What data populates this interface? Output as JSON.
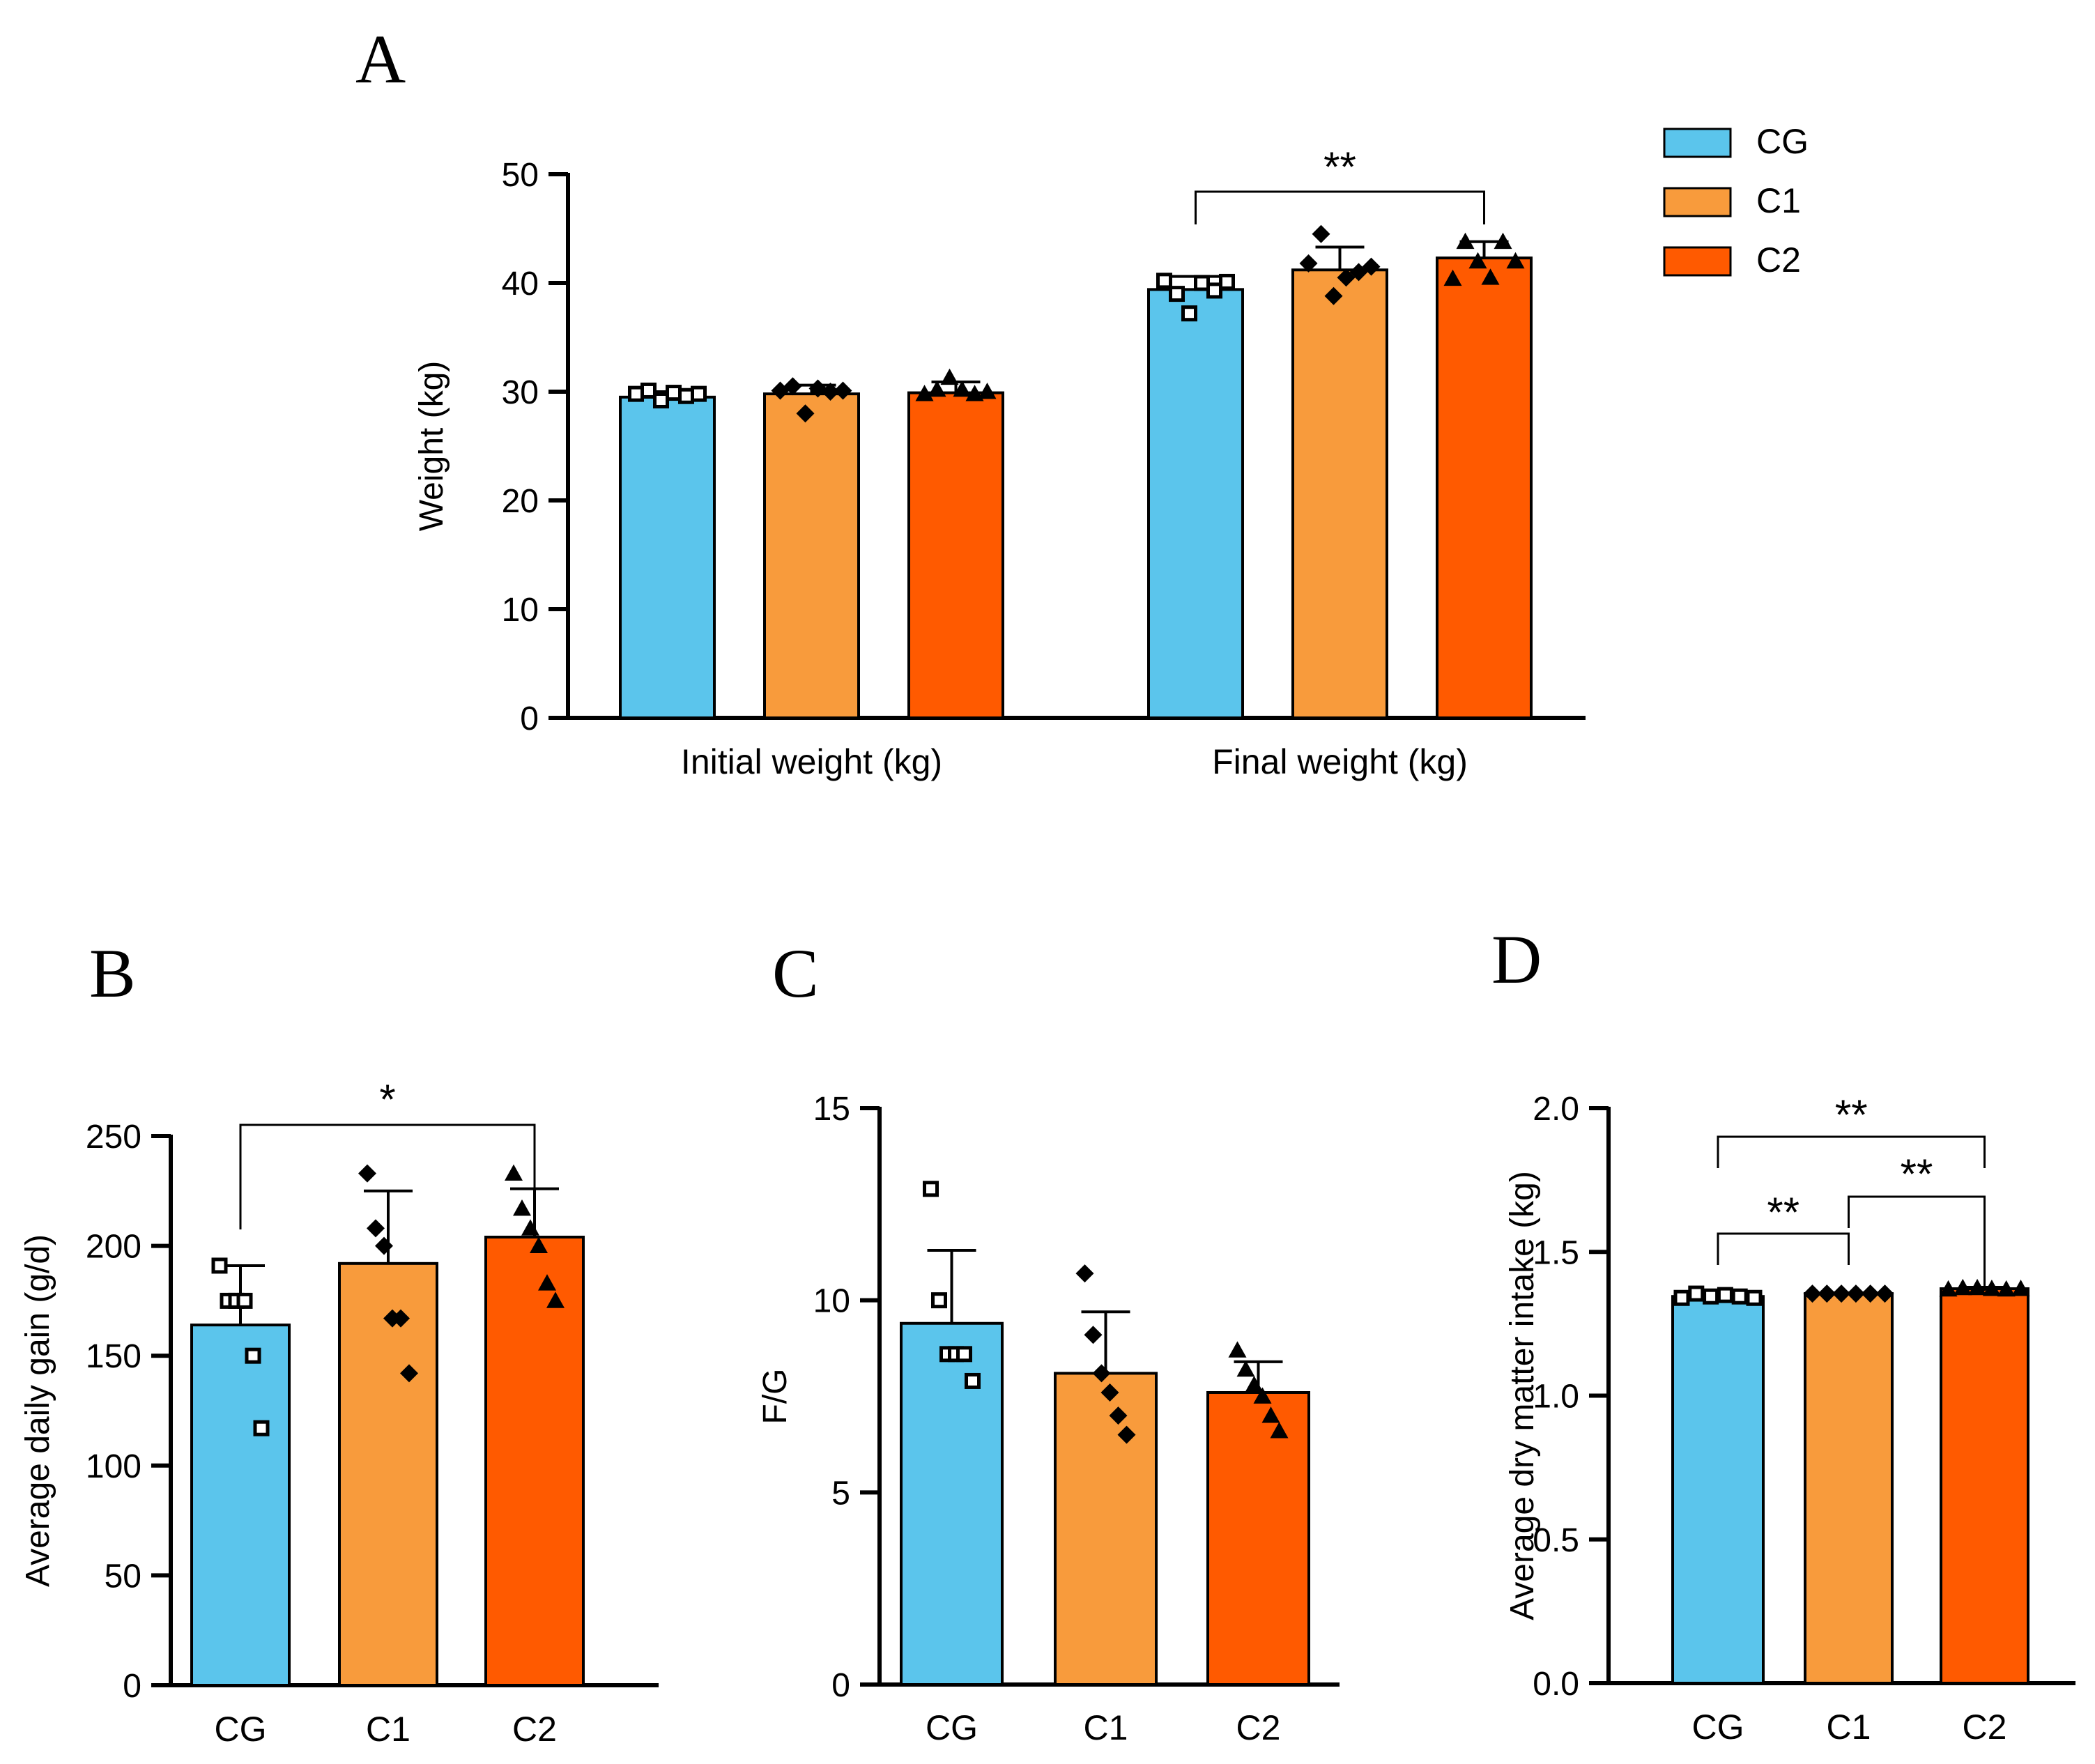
{
  "colors": {
    "CG": "#5BC5EC",
    "C1": "#F89B3C",
    "C2": "#FF5A00"
  },
  "legend": {
    "items": [
      {
        "label": "CG",
        "color": "#5BC5EC"
      },
      {
        "label": "C1",
        "color": "#F89B3C"
      },
      {
        "label": "C2",
        "color": "#FF5A00"
      }
    ]
  },
  "chart_data": [
    {
      "panel": "A",
      "type": "bar",
      "title": "",
      "ylabel": "Weight (kg)",
      "ylim": [
        0,
        50
      ],
      "yticks": [
        0,
        10,
        20,
        30,
        40,
        50
      ],
      "categories": [
        "Initial weight (kg)",
        "Final weight (kg)"
      ],
      "series": [
        {
          "name": "CG",
          "values": [
            29.5,
            39.4
          ],
          "err": [
            0.5,
            1.2
          ],
          "points": [
            [
              29.8,
              30.1,
              29.2,
              29.9,
              29.6,
              29.8
            ],
            [
              40.2,
              39.0,
              37.2,
              40.0,
              39.3,
              40.1
            ]
          ],
          "marker": "square"
        },
        {
          "name": "C1",
          "values": [
            29.8,
            41.2
          ],
          "err": [
            0.8,
            2.1
          ],
          "points": [
            [
              30.1,
              30.5,
              28.0,
              30.3,
              30.0,
              30.1
            ],
            [
              41.8,
              44.5,
              38.8,
              40.5,
              41.0,
              41.5
            ]
          ],
          "marker": "diamond"
        },
        {
          "name": "C2",
          "values": [
            29.9,
            42.3
          ],
          "err": [
            1.0,
            1.5
          ],
          "points": [
            [
              29.8,
              30.2,
              31.3,
              30.2,
              29.8,
              30.0
            ],
            [
              40.4,
              43.8,
              42.0,
              40.5,
              43.8,
              42.0
            ]
          ],
          "marker": "triangle"
        }
      ],
      "significance": [
        {
          "group": 1,
          "from": 0,
          "to": 2,
          "label": "**"
        }
      ]
    },
    {
      "panel": "B",
      "type": "bar",
      "title": "",
      "ylabel": "Average daily gain (g/d)",
      "ylim": [
        0,
        250
      ],
      "yticks": [
        0,
        50,
        100,
        150,
        200,
        250
      ],
      "categories": [
        "CG",
        "C1",
        "C2"
      ],
      "values": [
        164,
        192,
        204
      ],
      "err": [
        27,
        33,
        22
      ],
      "points": [
        [
          191,
          175,
          175,
          175,
          150,
          117
        ],
        [
          233,
          208,
          200,
          167,
          167,
          142
        ],
        [
          233,
          217,
          208,
          200,
          183,
          175
        ]
      ],
      "markers": [
        "square",
        "diamond",
        "triangle"
      ],
      "significance": [
        {
          "from": 0,
          "to": 2,
          "label": "*"
        }
      ]
    },
    {
      "panel": "C",
      "type": "bar",
      "title": "",
      "ylabel": "F/G",
      "ylim": [
        0,
        15
      ],
      "yticks": [
        0,
        5,
        10,
        15
      ],
      "categories": [
        "CG",
        "C1",
        "C2"
      ],
      "values": [
        9.4,
        8.1,
        7.6
      ],
      "err": [
        1.9,
        1.6,
        0.8
      ],
      "points": [
        [
          12.9,
          10.0,
          8.6,
          8.6,
          8.6,
          7.9
        ],
        [
          10.7,
          9.1,
          8.1,
          7.6,
          7.0,
          6.5
        ],
        [
          8.7,
          8.2,
          7.8,
          7.5,
          7.0,
          6.6
        ]
      ],
      "markers": [
        "square",
        "diamond",
        "triangle"
      ],
      "significance": []
    },
    {
      "panel": "D",
      "type": "bar",
      "title": "",
      "ylabel": "Average dry matter intake (kg)",
      "ylim": [
        0,
        2.0
      ],
      "yticks": [
        "0.0",
        "0.5",
        "1.0",
        "1.5",
        "2.0"
      ],
      "categories": [
        "CG",
        "C1",
        "C2"
      ],
      "values": [
        1.345,
        1.355,
        1.372
      ],
      "err": [
        0.01,
        0.003,
        0.005
      ],
      "points": [
        [
          1.34,
          1.355,
          1.345,
          1.35,
          1.345,
          1.34
        ],
        [
          1.355,
          1.355,
          1.355,
          1.355,
          1.355,
          1.355
        ],
        [
          1.37,
          1.375,
          1.375,
          1.372,
          1.37,
          1.372
        ]
      ],
      "markers": [
        "square",
        "diamond",
        "triangle"
      ],
      "significance": [
        {
          "from": 0,
          "to": 2,
          "label": "**"
        },
        {
          "from": 0,
          "to": 1,
          "label": "**"
        },
        {
          "from": 1,
          "to": 2,
          "label": "**"
        }
      ]
    }
  ]
}
